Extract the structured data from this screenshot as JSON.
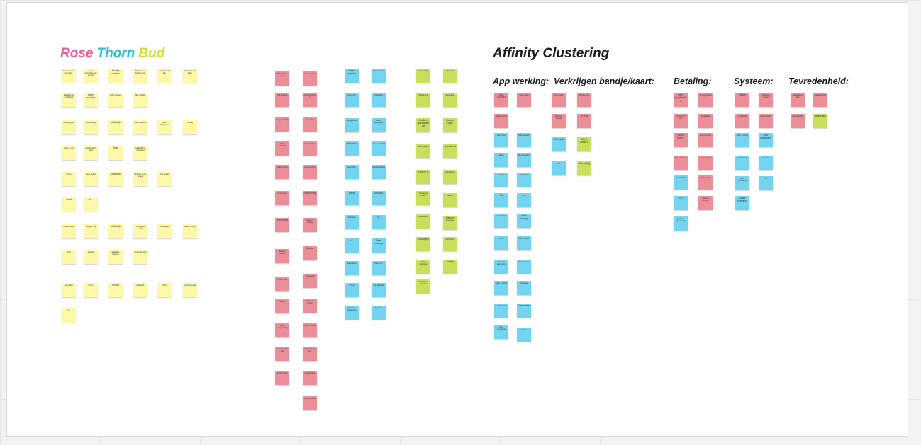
{
  "board": {
    "rtb_title": {
      "rose": "Rose",
      "thorn": "Thorn",
      "bud": "Bud"
    },
    "affinity_title": "Affinity Clustering",
    "categories": [
      "App werking:",
      "Verkrijgen bandje/kaart:",
      "Betaling:",
      "Systeem:",
      "Tevredenheid:"
    ]
  },
  "colors": {
    "rose": "#f05c9b",
    "thorn": "#2fbfcc",
    "bud": "#d4de39",
    "note_yellow": "#fef8a8",
    "note_pink": "#ec8e97",
    "note_blue": "#73d4ef",
    "note_green": "#c7df5b"
  },
  "sticky_notes": {
    "yellow": [
      "Geen idee hoe het werkt",
      "Geen informatie over de app",
      "Bandje ophalen",
      "Betalen met kaart is snel",
      "Handig dat het kan",
      "Overzicht van saldo",
      "Makkelijk op het festival",
      "Geen wachtrij",
      "Veilig systeem",
      "Niet gebruikt",
      "Snel geregeld",
      "Goede uitleg",
      "Makkelijk",
      "Saldo bekijken",
      "Geen problemen",
      "Handig",
      "Weet ik niet",
      "Bandje werkt goed",
      "Snel",
      "Makkelijk te gebruiken",
      "Prima",
      "Geen gedoe",
      "Makkelijk",
      "Niet van op de hoogte",
      "Snel betaald",
      "Goed",
      "Fijn",
      "Overzichtelijk",
      "Lange rij",
      "Makkelijk",
      "Teruggave saldo",
      "Onduidelijk",
      "Geen mening",
      "Snel",
      "Handig",
      "Makkelijk systeem",
      "Goed geregeld",
      "Geen idee",
      "Prima",
      "Simpel",
      "Makkelijk",
      "Snel",
      "Handig bandje",
      "Ok"
    ],
    "pink": [
      "Makkelijk op app",
      "Niet duidelijk",
      "Lange wachtrij",
      "Saldo onduidelijk",
      "Opladen lastig",
      "Geen uitleg",
      "App crasht",
      "Betaling mislukt",
      "Bandje kwijt",
      "Te duur",
      "Geen terugbetaling",
      "Kaart werkt niet",
      "Slecht bereik",
      "Traag systeem",
      "Onoverzichtelijk",
      "Fout saldo",
      "Geen contant",
      "Lang wachten",
      "Niet handig",
      "Systeem storing",
      "Gedoe",
      "Onduidelijk",
      "Te weinig punten",
      "Geen service"
    ],
    "blue": [
      "Geen mening",
      "Weet niet",
      "Niet gebruikt",
      "Neutraal",
      "Geen idee",
      "Werkt",
      "Normaal",
      "Ok",
      "Gemiddeld",
      "Prima",
      "Niet van toepassing",
      "Geen ervaring",
      "Onbekend",
      "Geen opmerking",
      "Zoals verwacht",
      "Niks bijzonders",
      "Gewoon",
      "Ok"
    ],
    "green": [
      "Meer uitleg",
      "Betere app",
      "Snellere opwaardering",
      "Meer punten",
      "Kortere rij",
      "Teruggave online",
      "Beter bereik",
      "Meldingen",
      "Saldo notificatie",
      "Makkelijker opladen",
      "Meer info",
      "Duidelijker",
      "Contant optie",
      "Betere service",
      "Handleiding",
      "Ideeën",
      "Nieuwe functies",
      "Verbeteren",
      "Sneller",
      "Meer kassa's"
    ]
  }
}
